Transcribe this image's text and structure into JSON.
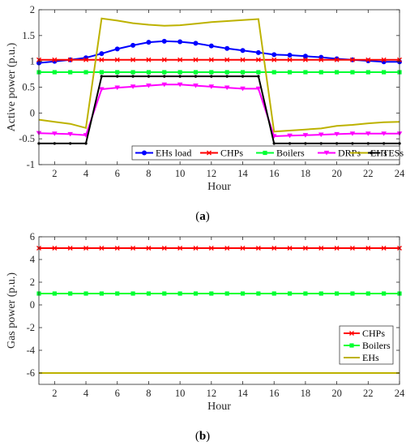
{
  "captions": {
    "a_open": "(",
    "a_letter": "a",
    "a_close": ")",
    "b_open": "(",
    "b_letter": "b",
    "b_close": ")"
  },
  "chart_data": [
    {
      "type": "line",
      "xlabel": "Hour",
      "ylabel": "Active power (p.u.)",
      "xlim": [
        1,
        24
      ],
      "ylim": [
        -1,
        2
      ],
      "xticks": [
        2,
        4,
        6,
        8,
        10,
        12,
        14,
        16,
        18,
        20,
        22,
        24
      ],
      "yticks": [
        -1,
        -0.5,
        0,
        0.5,
        1,
        1.5,
        2
      ],
      "ytick_labels": [
        "-1",
        "-0.5",
        "0",
        "0.5",
        "1",
        "1.5",
        "2"
      ],
      "grid": false,
      "legend": "bottom-right, horizontal",
      "x": [
        1,
        2,
        3,
        4,
        5,
        6,
        7,
        8,
        9,
        10,
        11,
        12,
        13,
        14,
        15,
        16,
        17,
        18,
        19,
        20,
        21,
        22,
        23,
        24
      ],
      "series": [
        {
          "name": "EHs load",
          "color": "#0000ff",
          "marker": "circle",
          "values": [
            0.97,
            1.0,
            1.03,
            1.07,
            1.15,
            1.24,
            1.31,
            1.37,
            1.39,
            1.38,
            1.35,
            1.3,
            1.25,
            1.21,
            1.17,
            1.13,
            1.12,
            1.1,
            1.08,
            1.05,
            1.03,
            1.01,
            0.99,
            0.99
          ]
        },
        {
          "name": "CHPs",
          "color": "#ff0000",
          "marker": "x",
          "values": [
            1.03,
            1.03,
            1.03,
            1.03,
            1.03,
            1.03,
            1.03,
            1.03,
            1.03,
            1.03,
            1.03,
            1.03,
            1.03,
            1.03,
            1.03,
            1.03,
            1.03,
            1.03,
            1.03,
            1.03,
            1.03,
            1.03,
            1.03,
            1.03
          ]
        },
        {
          "name": "Boilers",
          "color": "#00ff33",
          "marker": "square",
          "values": [
            0.79,
            0.79,
            0.79,
            0.79,
            0.79,
            0.79,
            0.79,
            0.79,
            0.79,
            0.79,
            0.79,
            0.79,
            0.79,
            0.79,
            0.79,
            0.79,
            0.79,
            0.79,
            0.79,
            0.79,
            0.79,
            0.79,
            0.79,
            0.79
          ]
        },
        {
          "name": "DRPs",
          "color": "#ff00ff",
          "marker": "triangle-down",
          "values": [
            -0.39,
            -0.4,
            -0.41,
            -0.43,
            0.46,
            0.49,
            0.51,
            0.53,
            0.55,
            0.55,
            0.53,
            0.51,
            0.49,
            0.47,
            0.47,
            -0.45,
            -0.44,
            -0.43,
            -0.42,
            -0.41,
            -0.4,
            -0.4,
            -0.4,
            -0.4
          ]
        },
        {
          "name": "TESs",
          "color": "#000000",
          "marker": "dot",
          "values": [
            -0.59,
            -0.59,
            -0.59,
            -0.59,
            0.71,
            0.71,
            0.71,
            0.71,
            0.71,
            0.71,
            0.71,
            0.71,
            0.71,
            0.71,
            0.71,
            -0.59,
            -0.59,
            -0.59,
            -0.59,
            -0.59,
            -0.59,
            -0.59,
            -0.59,
            -0.59
          ]
        },
        {
          "name": "EHs",
          "color": "#bdb200",
          "marker": "none",
          "values": [
            -0.13,
            -0.17,
            -0.21,
            -0.29,
            1.83,
            1.79,
            1.74,
            1.71,
            1.69,
            1.7,
            1.73,
            1.76,
            1.78,
            1.8,
            1.82,
            -0.36,
            -0.34,
            -0.32,
            -0.3,
            -0.25,
            -0.23,
            -0.2,
            -0.18,
            -0.17
          ]
        }
      ]
    },
    {
      "type": "line",
      "xlabel": "Hour",
      "ylabel": "Gas power (p.u.)",
      "xlim": [
        1,
        24
      ],
      "ylim": [
        -7,
        6
      ],
      "xticks": [
        2,
        4,
        6,
        8,
        10,
        12,
        14,
        16,
        18,
        20,
        22,
        24
      ],
      "yticks": [
        -6,
        -4,
        -2,
        0,
        2,
        4,
        6
      ],
      "ytick_labels": [
        "-6",
        "-4",
        "-2",
        "0",
        "2",
        "4",
        "6"
      ],
      "grid": false,
      "legend": "right, vertical",
      "x": [
        1,
        2,
        3,
        4,
        5,
        6,
        7,
        8,
        9,
        10,
        11,
        12,
        13,
        14,
        15,
        16,
        17,
        18,
        19,
        20,
        21,
        22,
        23,
        24
      ],
      "series": [
        {
          "name": "CHPs",
          "color": "#ff0000",
          "marker": "x",
          "values": [
            5,
            5,
            5,
            5,
            5,
            5,
            5,
            5,
            5,
            5,
            5,
            5,
            5,
            5,
            5,
            5,
            5,
            5,
            5,
            5,
            5,
            5,
            5,
            5
          ]
        },
        {
          "name": "Boilers",
          "color": "#00ff33",
          "marker": "square",
          "values": [
            1,
            1,
            1,
            1,
            1,
            1,
            1,
            1,
            1,
            1,
            1,
            1,
            1,
            1,
            1,
            1,
            1,
            1,
            1,
            1,
            1,
            1,
            1,
            1
          ]
        },
        {
          "name": "EHs",
          "color": "#bdb200",
          "marker": "none",
          "values": [
            -6,
            -6,
            -6,
            -6,
            -6,
            -6,
            -6,
            -6,
            -6,
            -6,
            -6,
            -6,
            -6,
            -6,
            -6,
            -6,
            -6,
            -6,
            -6,
            -6,
            -6,
            -6,
            -6,
            -6
          ]
        }
      ]
    }
  ]
}
